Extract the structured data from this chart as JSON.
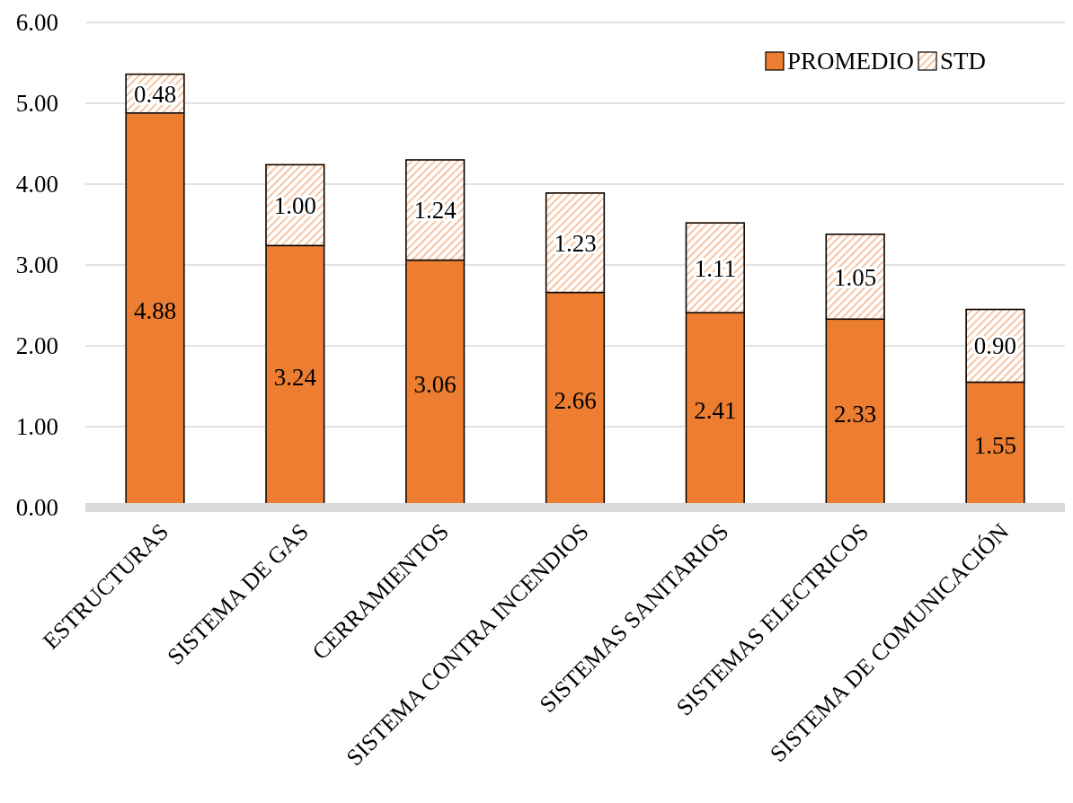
{
  "chart_data": {
    "type": "bar",
    "stacked": true,
    "categories": [
      "ESTRUCTURAS",
      "SISTEMA DE GAS",
      "CERRAMIENTOS",
      "SISTEMA CONTRA INCENDIOS",
      "SISTEMAS SANITARIOS",
      "SISTEMAS ELECTRICOS",
      "SISTEMA DE COMUNICACIÓN"
    ],
    "series": [
      {
        "name": "PROMEDIO",
        "color": "#ed7d31",
        "values": [
          4.88,
          3.24,
          3.06,
          2.66,
          2.41,
          2.33,
          1.55
        ],
        "value_labels": [
          "4.88",
          "3.24",
          "3.06",
          "2.66",
          "2.41",
          "2.33",
          "1.55"
        ]
      },
      {
        "name": "STD",
        "color": "#f4b183",
        "values": [
          0.48,
          1.0,
          1.24,
          1.23,
          1.11,
          1.05,
          0.9
        ],
        "value_labels": [
          "0.48",
          "1.00",
          "1.24",
          "1.23",
          "1.11",
          "1.05",
          "0.90"
        ]
      }
    ],
    "ylim": [
      0,
      6
    ],
    "yticks": [
      {
        "value": 0,
        "label": "0.00"
      },
      {
        "value": 1,
        "label": "1.00"
      },
      {
        "value": 2,
        "label": "2.00"
      },
      {
        "value": 3,
        "label": "3.00"
      },
      {
        "value": 4,
        "label": "4.00"
      },
      {
        "value": 5,
        "label": "5.00"
      },
      {
        "value": 6,
        "label": "6.00"
      }
    ],
    "grid": "y",
    "legend": "top right"
  }
}
